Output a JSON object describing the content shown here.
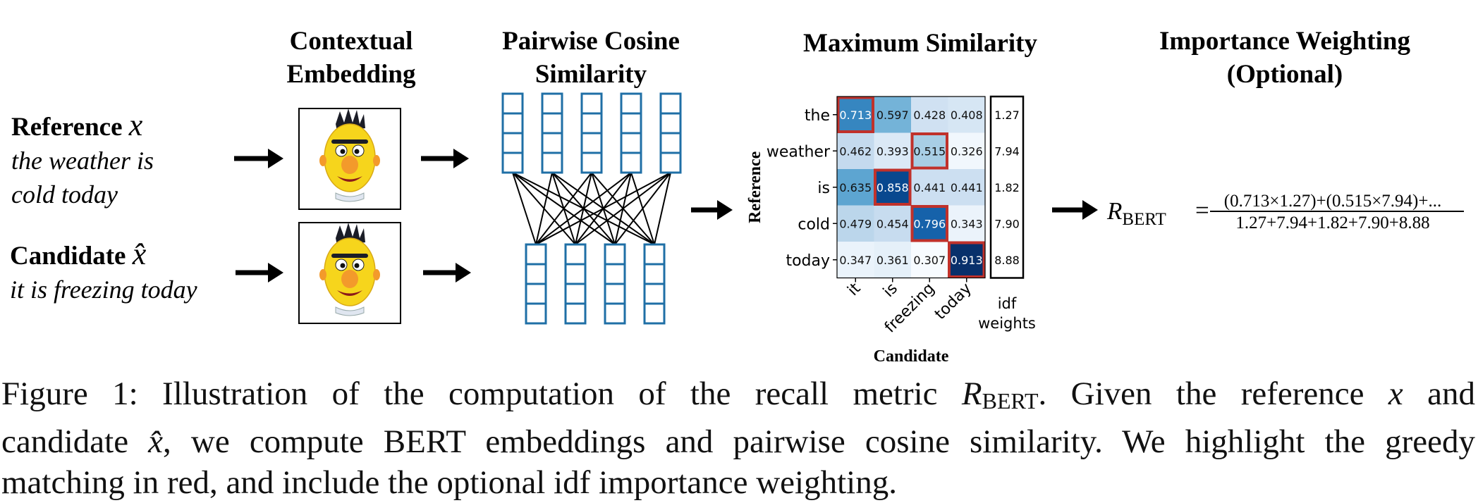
{
  "headers": {
    "embedding": [
      "Contextual",
      "Embedding"
    ],
    "cosine": [
      "Pairwise Cosine",
      "Similarity"
    ],
    "max_sim": "Maximum Similarity",
    "importance": [
      "Importance Weighting",
      "(Optional)"
    ]
  },
  "reference": {
    "label": "Reference",
    "symbol": "x",
    "text_lines": [
      "the weather is",
      "cold today"
    ]
  },
  "candidate": {
    "label": "Candidate",
    "symbol": "x̂",
    "text": "it is freezing today"
  },
  "heatmap": {
    "row_labels": [
      "the",
      "weather",
      "is",
      "cold",
      "today"
    ],
    "col_labels": [
      "it",
      "is",
      "freezing",
      "today"
    ],
    "values": [
      [
        0.713,
        0.597,
        0.428,
        0.408
      ],
      [
        0.462,
        0.393,
        0.515,
        0.326
      ],
      [
        0.635,
        0.858,
        0.441,
        0.441
      ],
      [
        0.479,
        0.454,
        0.796,
        0.343
      ],
      [
        0.347,
        0.361,
        0.307,
        0.913
      ]
    ],
    "value_labels": [
      [
        "0.713",
        "0.597",
        "0.428",
        "0.408"
      ],
      [
        "0.462",
        "0.393",
        "0.515",
        "0.326"
      ],
      [
        "0.635",
        "0.858",
        "0.441",
        "0.441"
      ],
      [
        "0.479",
        "0.454",
        "0.796",
        "0.343"
      ],
      [
        "0.347",
        "0.361",
        "0.307",
        "0.913"
      ]
    ],
    "greedy_match": [
      [
        0,
        0
      ],
      [
        1,
        2
      ],
      [
        2,
        1
      ],
      [
        3,
        2
      ],
      [
        4,
        3
      ]
    ],
    "y_axis_label": "Reference",
    "x_axis_label": "Candidate",
    "idf_weights": [
      "1.27",
      "7.94",
      "1.82",
      "7.90",
      "8.88"
    ],
    "idf_label": [
      "idf",
      "weights"
    ],
    "colormap": "Blues",
    "highlight_color": "#c0312b"
  },
  "formula": {
    "lhs": "R",
    "lhs_sub": "BERT",
    "equals": "=",
    "numerator": "(0.713×1.27)+(0.515×7.94)+...",
    "denominator": "1.27+7.94+1.82+7.90+8.88"
  },
  "caption": {
    "line1_a": "Figure 1:  Illustration of the computation of the recall metric ",
    "line1_r": "R",
    "line1_sub": "BERT",
    "line1_b": ".  Given the reference ",
    "line1_x": "x",
    "line1_c": " and",
    "line2_a": "candidate ",
    "line2_x": "x̂",
    "line2_b": ", we compute BERT embeddings and pairwise cosine similarity. We highlight the greedy",
    "line3": "matching in red, and include the optional idf importance weighting."
  },
  "colors": {
    "embedding_box": "#1f6fa6",
    "arrow": "#000000",
    "face_yellow": "#f6d51c",
    "face_nose": "#f39a2b",
    "hair": "#1b1d27"
  }
}
